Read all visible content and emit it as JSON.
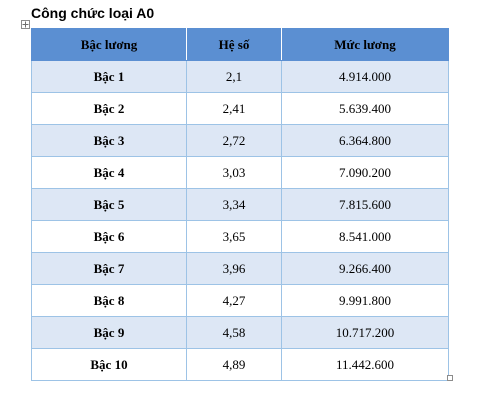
{
  "document": {
    "title": "Công chức loại A0"
  },
  "table": {
    "headers": [
      "Bậc lương",
      "Hệ số",
      "Mức lương"
    ],
    "rows": [
      [
        "Bậc 1",
        "2,1",
        "4.914.000"
      ],
      [
        "Bậc 2",
        "2,41",
        "5.639.400"
      ],
      [
        "Bậc 3",
        "2,72",
        "6.364.800"
      ],
      [
        "Bậc 4",
        "3,03",
        "7.090.200"
      ],
      [
        "Bậc 5",
        "3,34",
        "7.815.600"
      ],
      [
        "Bậc 6",
        "3,65",
        "8.541.000"
      ],
      [
        "Bậc 7",
        "3,96",
        "9.266.400"
      ],
      [
        "Bậc 8",
        "4,27",
        "9.991.800"
      ],
      [
        "Bậc 9",
        "4,58",
        "10.717.200"
      ],
      [
        "Bậc 10",
        "4,89",
        "11.442.600"
      ]
    ]
  },
  "icons": {
    "table_move_handle": "move-icon",
    "table_resize_handle": "resize-icon"
  },
  "colors": {
    "header_background": "#5b8fd2",
    "band_background": "#dde7f5",
    "grid_border": "#9dc3e6"
  }
}
